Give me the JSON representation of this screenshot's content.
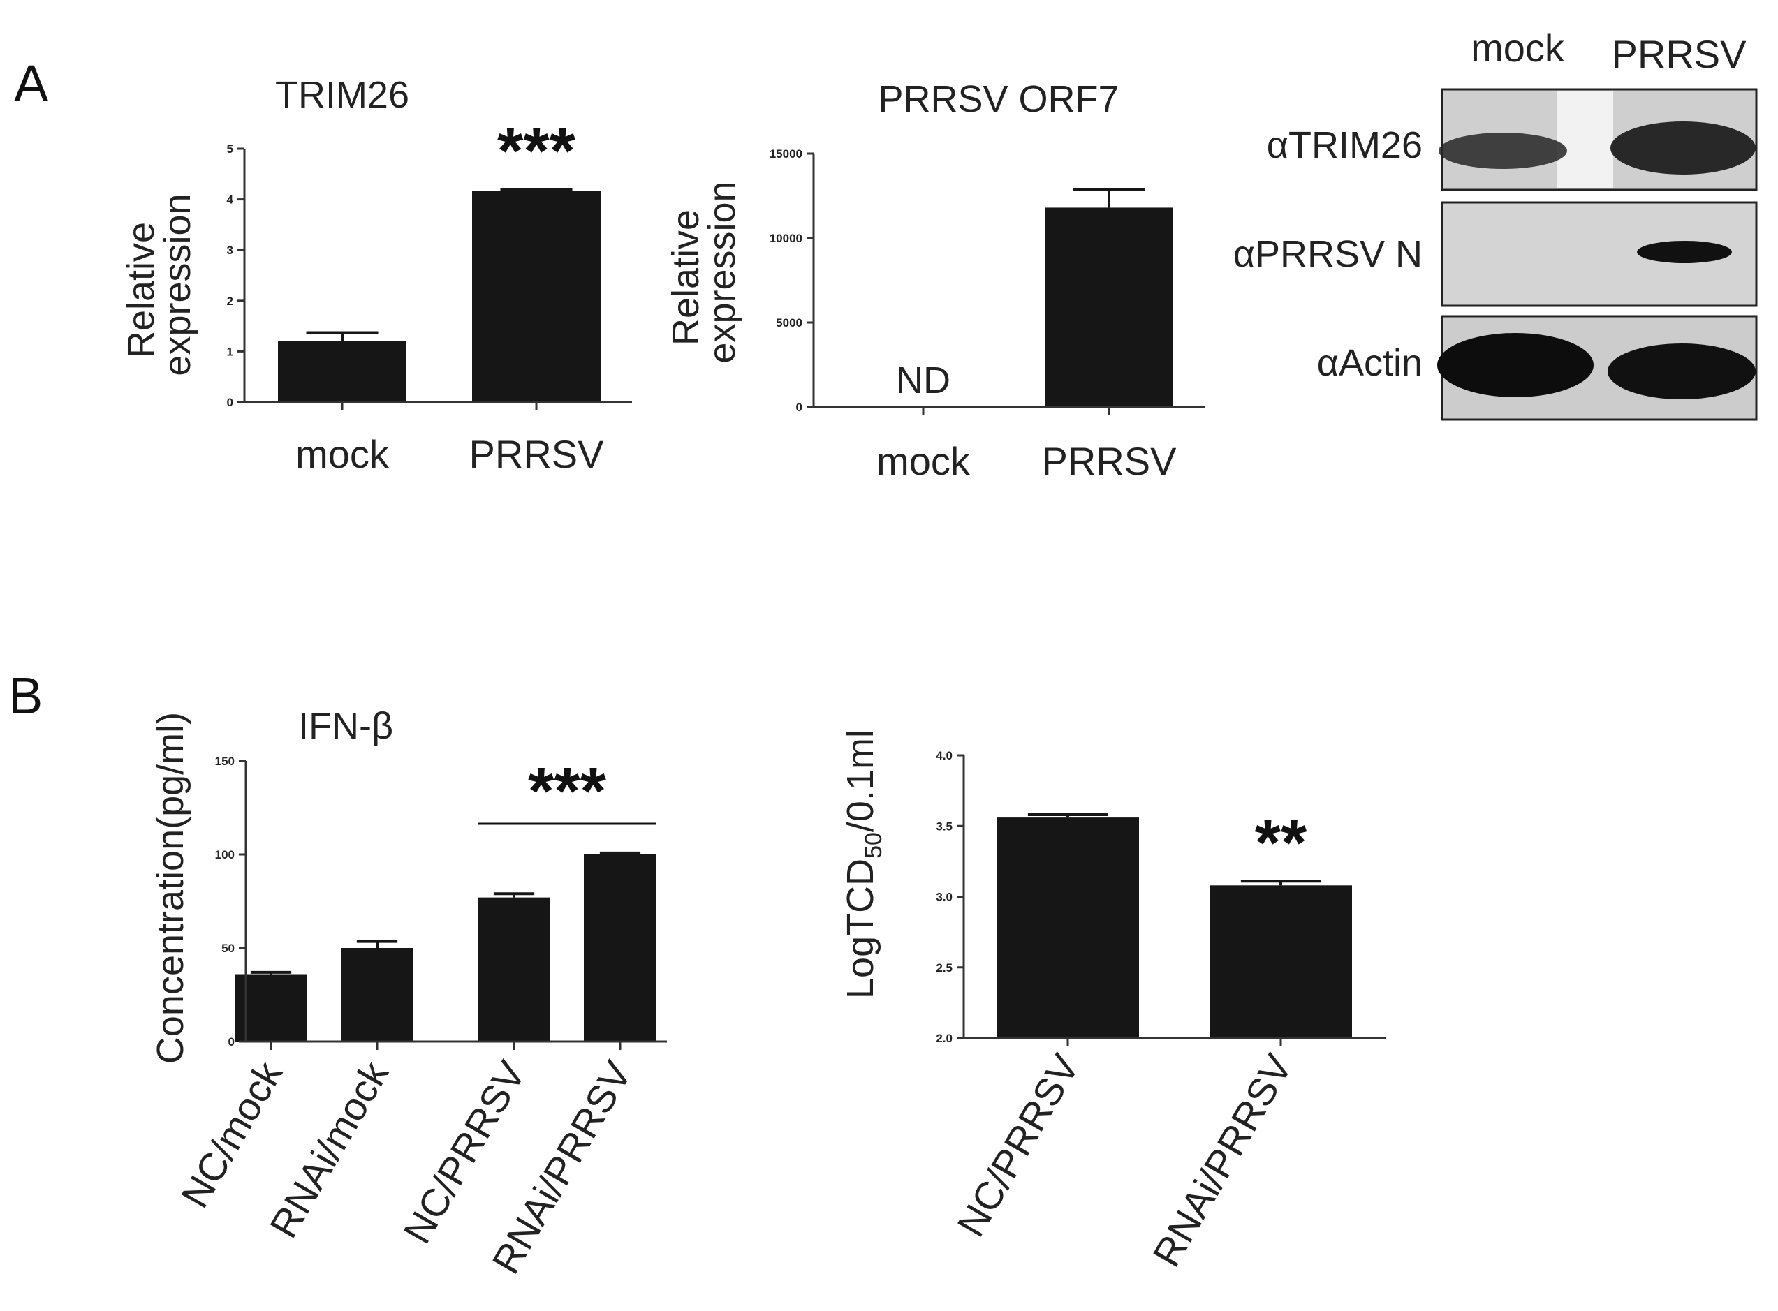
{
  "panels": {
    "a": {
      "letter": "A"
    },
    "b": {
      "letter": "B"
    }
  },
  "colors": {
    "bar": "#161616",
    "axis": "#333333",
    "blot_bg": "#d9d9d9",
    "band": "#111111"
  },
  "chart_data": [
    {
      "id": "trim26",
      "type": "bar",
      "title": "TRIM26",
      "ylabel": "Relative\nexpression",
      "categories": [
        "mock",
        "PRRSV"
      ],
      "values": [
        1.2,
        4.17
      ],
      "errors": [
        0.17,
        0.03
      ],
      "ylim": [
        0,
        5
      ],
      "yticks": [
        "0",
        "1",
        "2",
        "3",
        "4",
        "5"
      ],
      "significance": [
        {
          "bar": 1,
          "label": "***"
        }
      ]
    },
    {
      "id": "orf7",
      "type": "bar",
      "title": "PRRSV ORF7",
      "ylabel": "Relative\nexpression",
      "categories": [
        "mock",
        "PRRSV"
      ],
      "values": [
        0,
        11800
      ],
      "errors": [
        0,
        1050
      ],
      "ylim": [
        0,
        15000
      ],
      "yticks": [
        "0",
        "5000",
        "10000",
        "15000"
      ],
      "annotations": [
        {
          "bar": 0,
          "label": "ND"
        }
      ]
    },
    {
      "id": "ifnb",
      "type": "bar",
      "title": "IFN-β",
      "ylabel": "Concentration(pg/ml)",
      "categories": [
        "NC/mock",
        "RNAi/mock",
        "NC/PRRSV",
        "RNAi/PRRSV"
      ],
      "values": [
        36,
        50,
        77,
        100
      ],
      "errors": [
        1,
        3.5,
        2,
        0.8
      ],
      "ylim": [
        0,
        150
      ],
      "yticks": [
        "0",
        "50",
        "100",
        "150"
      ],
      "significance": [
        {
          "from": 2,
          "to": 3,
          "label": "***"
        }
      ]
    },
    {
      "id": "tcid",
      "type": "bar",
      "title": "",
      "ylabel_main": "LogTCD",
      "ylabel_sub": "50",
      "ylabel_tail": "/0.1ml",
      "categories": [
        "NC/PRRSV",
        "RNAi/PRRSV"
      ],
      "values": [
        3.56,
        3.08
      ],
      "errors": [
        0.02,
        0.03
      ],
      "ylim": [
        2.0,
        4.0
      ],
      "yticks": [
        "2.0",
        "2.5",
        "3.0",
        "3.5",
        "4.0"
      ],
      "significance": [
        {
          "bar": 1,
          "label": "**"
        }
      ]
    }
  ],
  "western_blot": {
    "lanes": [
      "mock",
      "PRRSV"
    ],
    "rows": [
      {
        "label": "αTRIM26"
      },
      {
        "label": "αPRRSV N"
      },
      {
        "label": "αActin"
      }
    ]
  }
}
